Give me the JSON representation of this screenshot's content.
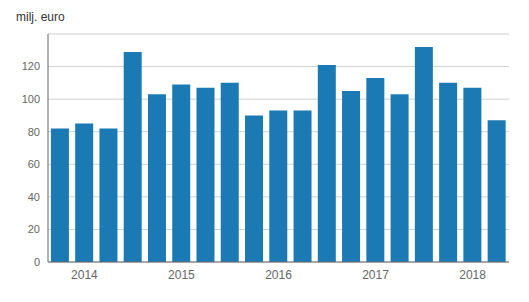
{
  "chart_data": {
    "type": "bar",
    "ylabel": "milj. euro",
    "categories": [
      null,
      "2014",
      null,
      null,
      null,
      "2015",
      null,
      null,
      null,
      "2016",
      null,
      null,
      null,
      "2017",
      null,
      null,
      null,
      "2018",
      null
    ],
    "values": [
      82,
      85,
      82,
      129,
      103,
      109,
      107,
      110,
      90,
      93,
      93,
      121,
      105,
      113,
      103,
      132,
      110,
      107,
      87
    ],
    "color": "#1b7ab3",
    "ylim": [
      0,
      140
    ],
    "yticks": [
      0,
      20,
      40,
      60,
      80,
      100,
      120
    ],
    "grid": true
  }
}
